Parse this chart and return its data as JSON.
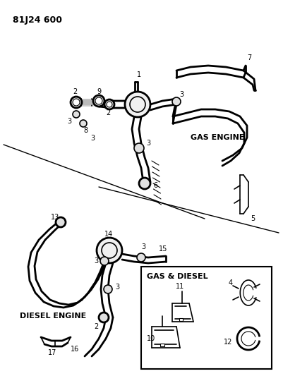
{
  "title": "81J24 600",
  "bg": "#ffffff",
  "lc": "#000000",
  "figsize": [
    4.01,
    5.33
  ],
  "dpi": 100,
  "labels": {
    "gas_engine": "GAS ENGINE",
    "diesel_engine": "DIESEL ENGINE",
    "gas_diesel": "GAS & DIESEL"
  }
}
